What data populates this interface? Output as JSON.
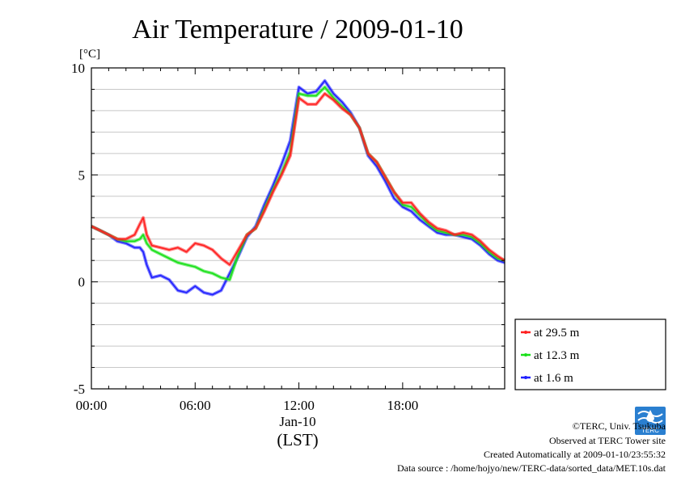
{
  "chart_data": {
    "type": "line",
    "title": "Air Temperature / 2009-01-10",
    "ylabel": "[°C]",
    "xlabel": "(LST)",
    "x_date_label": "Jan-10",
    "xlim_hours": [
      0,
      23.9
    ],
    "ylim": [
      -5,
      10
    ],
    "y_ticks": [
      "10",
      "5",
      "0",
      "-5"
    ],
    "x_ticks": [
      "00:00",
      "06:00",
      "12:00",
      "18:00"
    ],
    "grid": true,
    "legend_position": "right-bottom",
    "x_hours": [
      0,
      0.5,
      1,
      1.5,
      2,
      2.5,
      2.8,
      3,
      3.2,
      3.5,
      4,
      4.5,
      5,
      5.5,
      6,
      6.5,
      7,
      7.5,
      8,
      8.5,
      9,
      9.5,
      10,
      10.5,
      11,
      11.5,
      12,
      12.5,
      13,
      13.5,
      14,
      14.5,
      15,
      15.5,
      16,
      16.5,
      17,
      17.5,
      18,
      18.5,
      19,
      19.5,
      20,
      20.5,
      21,
      21.5,
      22,
      22.5,
      23,
      23.5,
      23.9
    ],
    "series": [
      {
        "name": "at 29.5 m",
        "color": "#ff2020",
        "values": [
          2.6,
          2.4,
          2.2,
          2.0,
          2.0,
          2.2,
          2.7,
          3.0,
          2.2,
          1.7,
          1.6,
          1.5,
          1.6,
          1.4,
          1.8,
          1.7,
          1.5,
          1.1,
          0.8,
          1.5,
          2.2,
          2.5,
          3.3,
          4.2,
          5.0,
          5.9,
          8.6,
          8.3,
          8.3,
          8.8,
          8.5,
          8.1,
          7.8,
          7.2,
          6.0,
          5.6,
          4.9,
          4.2,
          3.7,
          3.7,
          3.2,
          2.8,
          2.5,
          2.4,
          2.2,
          2.3,
          2.2,
          1.9,
          1.5,
          1.2,
          1.0
        ]
      },
      {
        "name": "at 12.3 m",
        "color": "#18e018",
        "values": [
          2.6,
          2.4,
          2.2,
          2.0,
          1.9,
          1.9,
          2.0,
          2.2,
          1.8,
          1.5,
          1.3,
          1.1,
          0.9,
          0.8,
          0.7,
          0.5,
          0.4,
          0.2,
          0.1,
          1.3,
          2.2,
          2.5,
          3.4,
          4.3,
          5.1,
          6.1,
          8.8,
          8.7,
          8.7,
          9.1,
          8.6,
          8.2,
          7.8,
          7.2,
          6.0,
          5.6,
          4.9,
          4.2,
          3.6,
          3.5,
          3.1,
          2.7,
          2.4,
          2.3,
          2.2,
          2.2,
          2.1,
          1.8,
          1.4,
          1.1,
          1.0
        ]
      },
      {
        "name": "at 1.6 m",
        "color": "#2020ff",
        "values": [
          2.6,
          2.4,
          2.2,
          1.9,
          1.8,
          1.6,
          1.6,
          1.4,
          0.8,
          0.2,
          0.3,
          0.1,
          -0.4,
          -0.5,
          -0.2,
          -0.5,
          -0.6,
          -0.4,
          0.4,
          1.2,
          2.1,
          2.6,
          3.6,
          4.5,
          5.5,
          6.6,
          9.1,
          8.8,
          8.9,
          9.4,
          8.8,
          8.4,
          7.9,
          7.2,
          5.9,
          5.4,
          4.7,
          3.9,
          3.5,
          3.3,
          2.9,
          2.6,
          2.3,
          2.2,
          2.2,
          2.1,
          2.0,
          1.7,
          1.3,
          1.0,
          0.9
        ]
      }
    ]
  },
  "footer": {
    "logo_text": "TERC",
    "copyright": "©TERC, Univ. Tsukuba",
    "observed": "Observed at TERC Tower site",
    "created": "Created Automatically at 2009-01-10/23:55:32",
    "source": "Data source : /home/hojyo/new/TERC-data/sorted_data/MET.10s.dat"
  }
}
